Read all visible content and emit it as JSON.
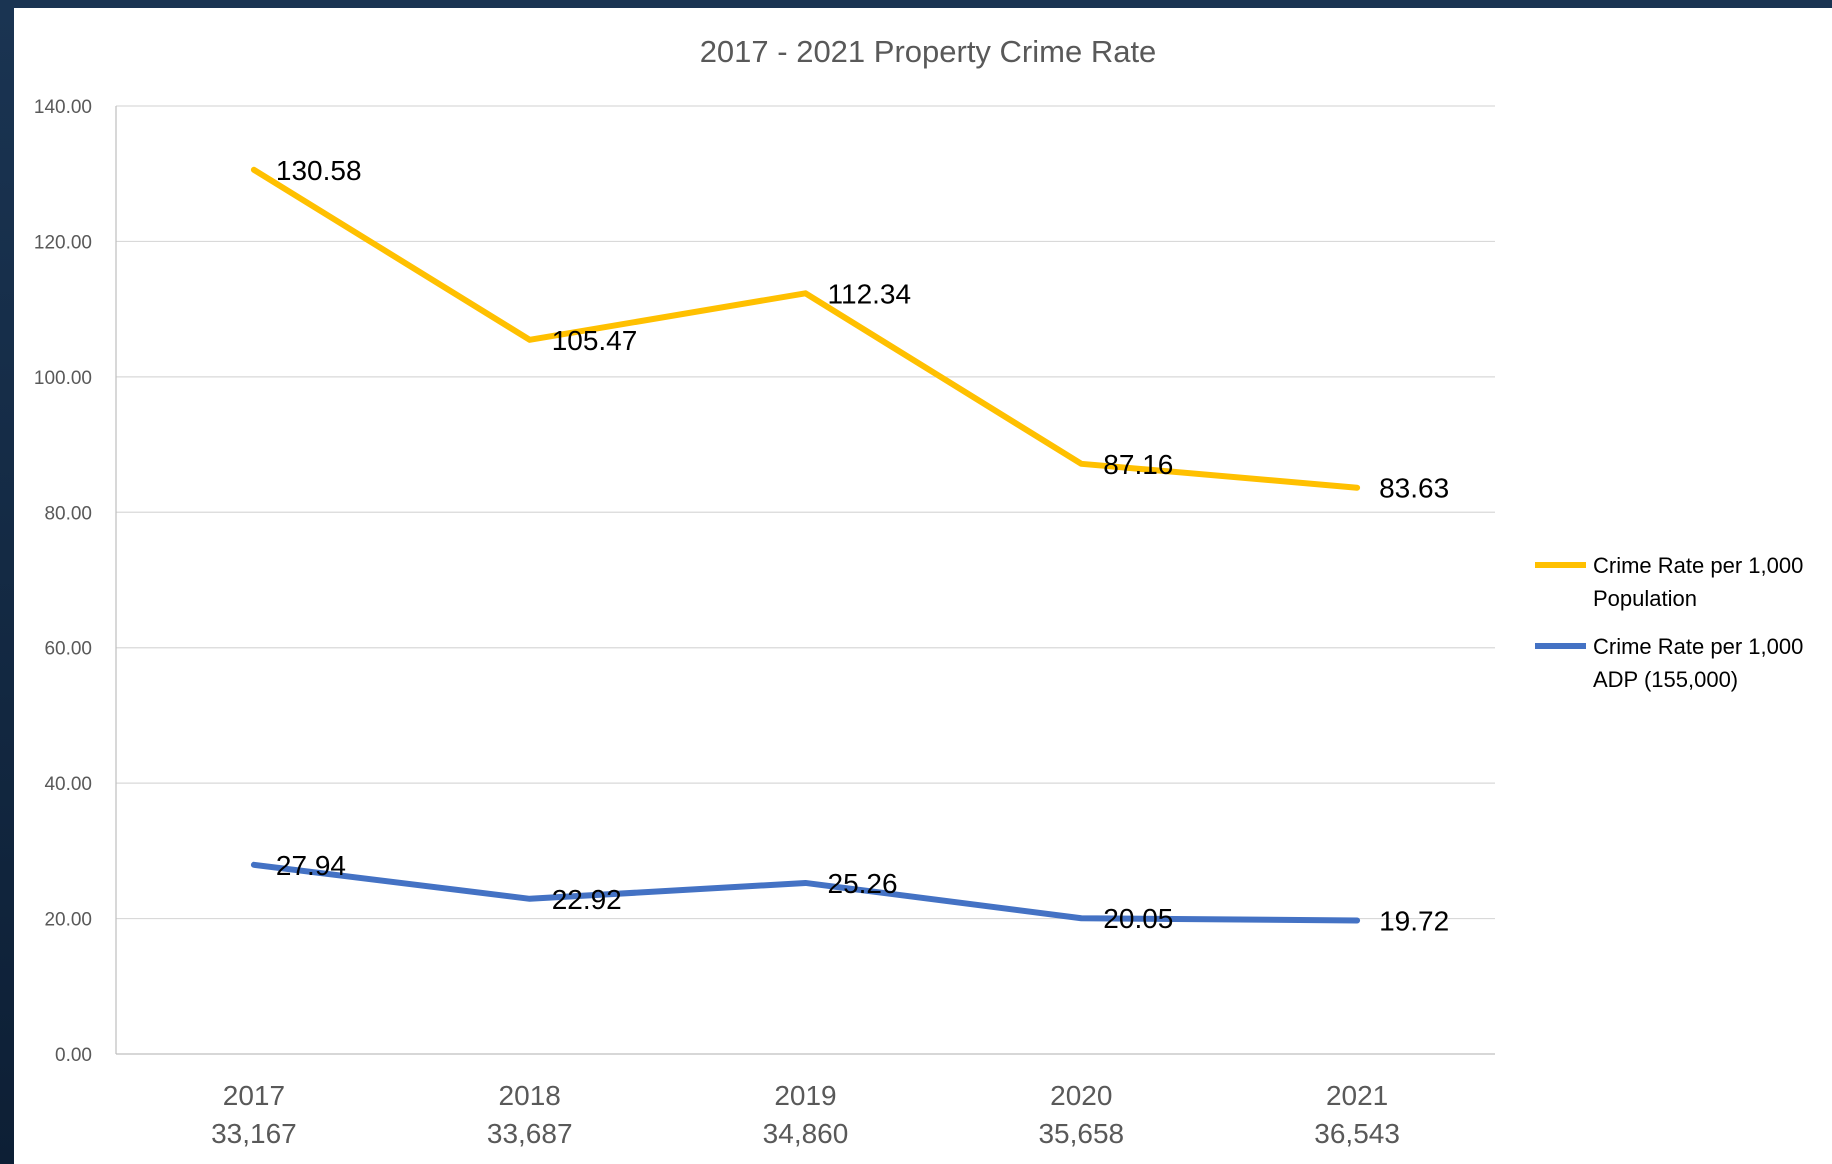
{
  "chart_data": {
    "type": "line",
    "title": "2017 - 2021 Property Crime Rate",
    "categories": [
      [
        "2017",
        "33,167"
      ],
      [
        "2018",
        "33,687"
      ],
      [
        "2019",
        "34,860"
      ],
      [
        "2020",
        "35,658"
      ],
      [
        "2021",
        "36,543"
      ]
    ],
    "yticks": [
      "0.00",
      "20.00",
      "40.00",
      "60.00",
      "80.00",
      "100.00",
      "120.00",
      "140.00"
    ],
    "ylim": [
      0,
      140
    ],
    "grid": true,
    "legend_position": "right",
    "series": [
      {
        "name": [
          "Crime Rate per 1,000",
          "Population"
        ],
        "color": "#FFC000",
        "values": [
          130.58,
          105.47,
          112.34,
          87.16,
          83.63
        ],
        "labels": [
          "130.58",
          "105.47",
          "112.34",
          "87.16",
          "83.63"
        ]
      },
      {
        "name": [
          "Crime Rate per 1,000",
          "ADP (155,000)"
        ],
        "color": "#4472C4",
        "values": [
          27.94,
          22.92,
          25.26,
          20.05,
          19.72
        ],
        "labels": [
          "27.94",
          "22.92",
          "25.26",
          "20.05",
          "19.72"
        ]
      }
    ]
  }
}
